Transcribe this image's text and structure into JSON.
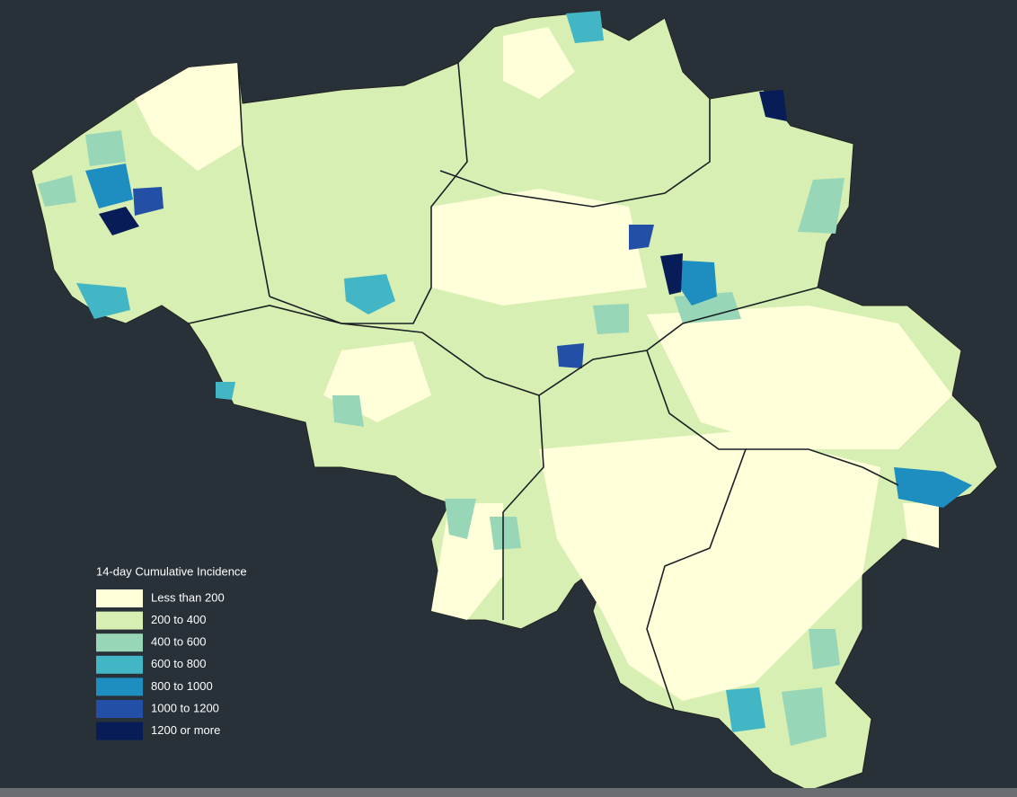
{
  "legend": {
    "title": "14-day Cumulative Incidence",
    "items": [
      {
        "label": "Less than 200",
        "color": "#ffffd9"
      },
      {
        "label": "200 to 400",
        "color": "#d7efb3"
      },
      {
        "label": "400 to 600",
        "color": "#98d6b8"
      },
      {
        "label": "600 to 800",
        "color": "#42b6c4"
      },
      {
        "label": "800 to 1000",
        "color": "#1e8dc0"
      },
      {
        "label": "1000 to 1200",
        "color": "#2350a6"
      },
      {
        "label": "1200 or more",
        "color": "#081d58"
      }
    ]
  }
}
